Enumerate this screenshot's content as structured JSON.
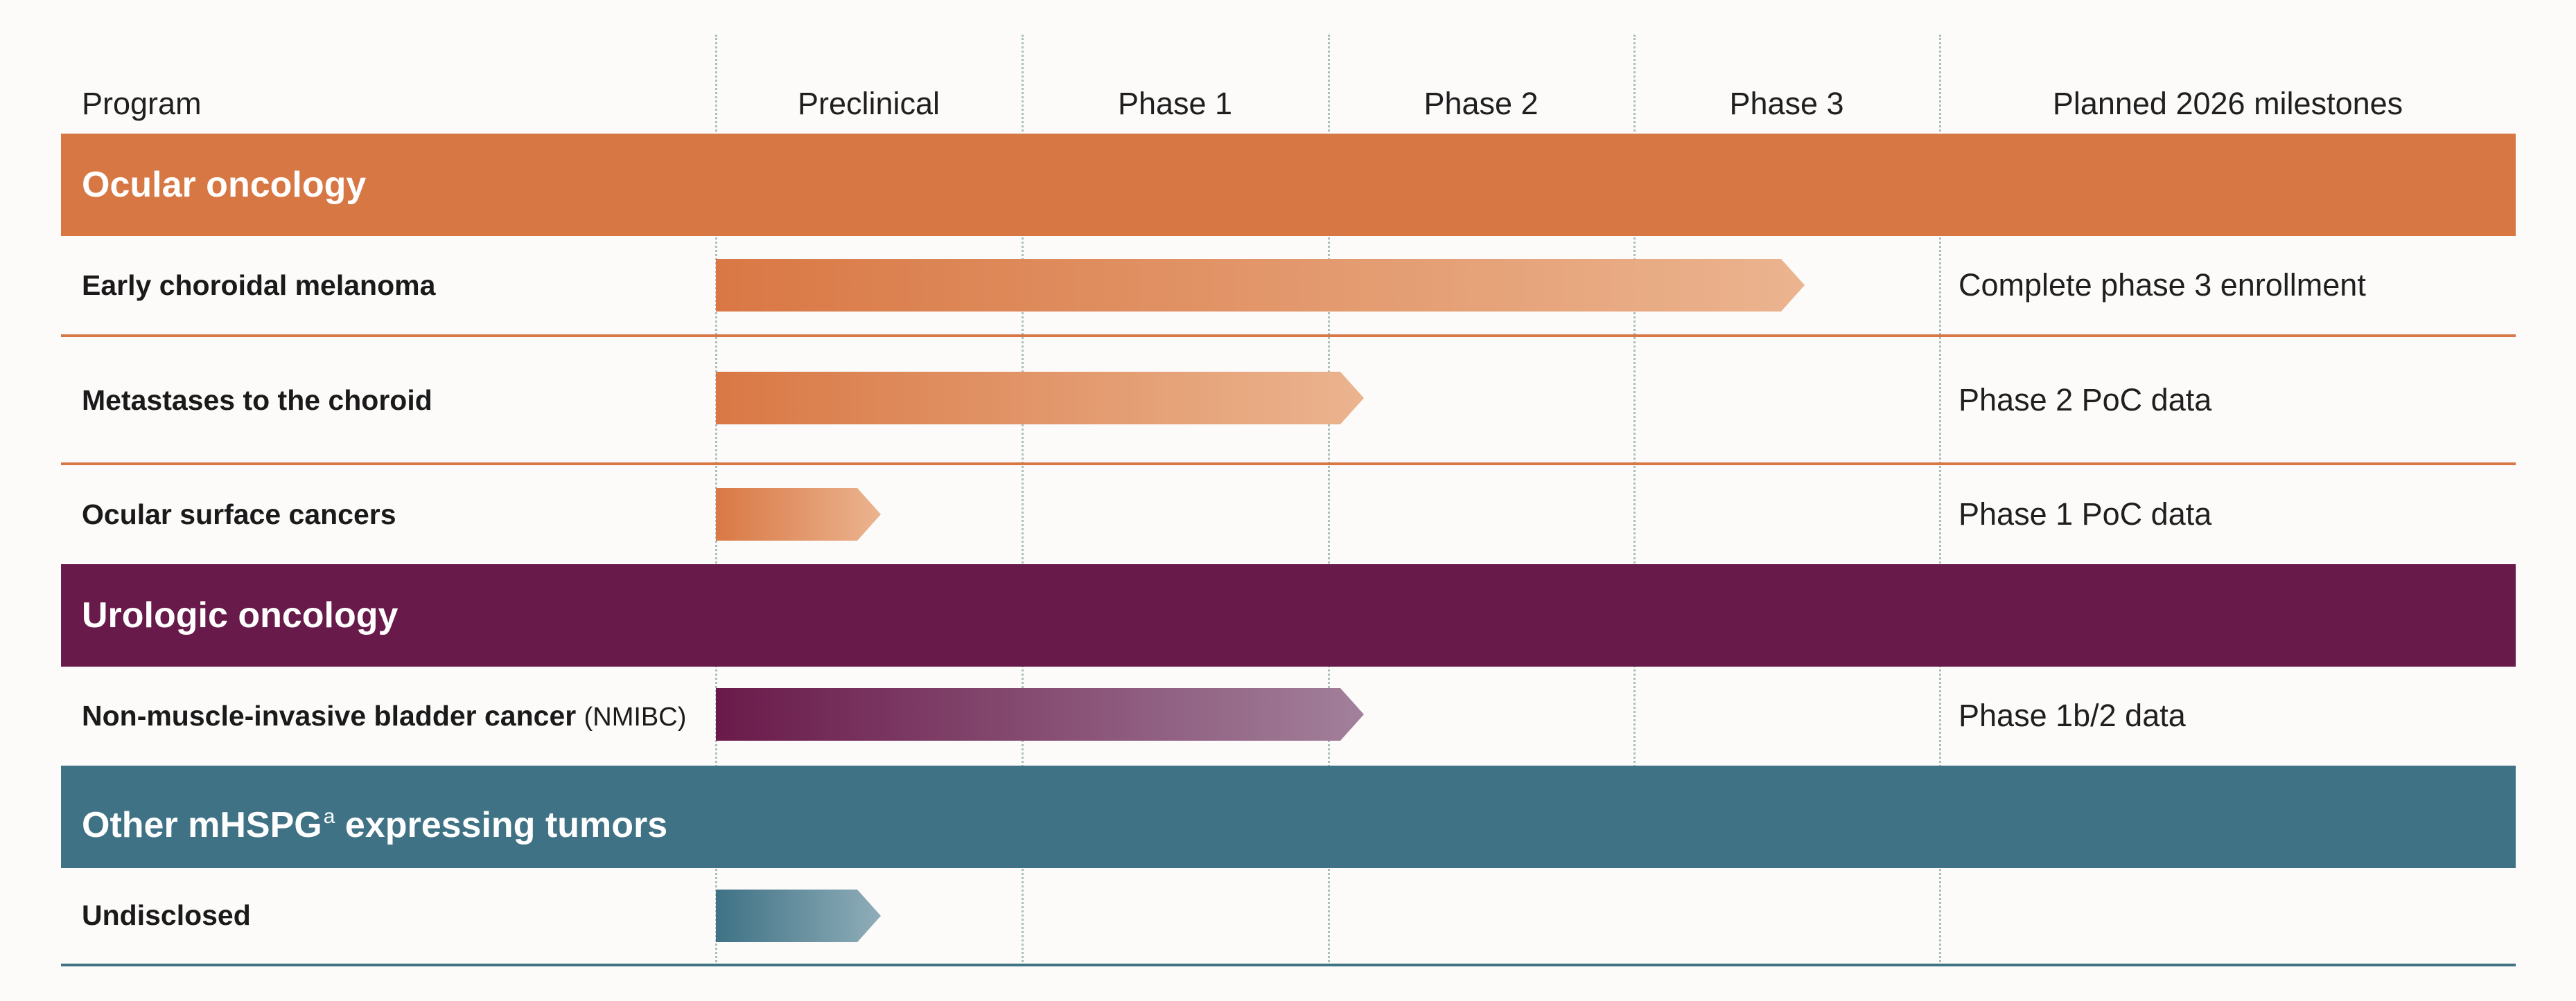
{
  "columns": {
    "program": "Program",
    "phases": [
      "Preclinical",
      "Phase 1",
      "Phase 2",
      "Phase 3"
    ],
    "milestones": "Planned 2026 milestones"
  },
  "sections": [
    {
      "title": "Ocular oncology",
      "color": "#d67744",
      "programs": [
        {
          "name": "Early choroidal melanoma",
          "stage": "Phase 3",
          "progress": 0.89,
          "milestone": "Complete phase 3 enrollment"
        },
        {
          "name": "Metastases to the choroid",
          "stage": "Phase 2",
          "progress": 0.53,
          "milestone": "Phase 2 PoC data"
        },
        {
          "name": "Ocular surface cancers",
          "stage": "Preclinical",
          "progress": 0.135,
          "milestone": "Phase 1 PoC data"
        }
      ]
    },
    {
      "title": "Urologic oncology",
      "color": "#681a4a",
      "programs": [
        {
          "name": "Non-muscle-invasive bladder cancer",
          "abbr": "(NMIBC)",
          "stage": "Phase 2",
          "progress": 0.53,
          "milestone": "Phase 1b/2 data"
        }
      ]
    },
    {
      "title": "Other mHSPG",
      "title_superscript": "a",
      "title_suffix": "expressing tumors",
      "color": "#3f7284",
      "programs": [
        {
          "name": "Undisclosed",
          "stage": "Preclinical",
          "progress": 0.135,
          "milestone": ""
        }
      ]
    }
  ],
  "colors": {
    "orange": "#d67744",
    "purple": "#681a4a",
    "teal": "#3f7284",
    "grid": "#a8bfbe"
  }
}
